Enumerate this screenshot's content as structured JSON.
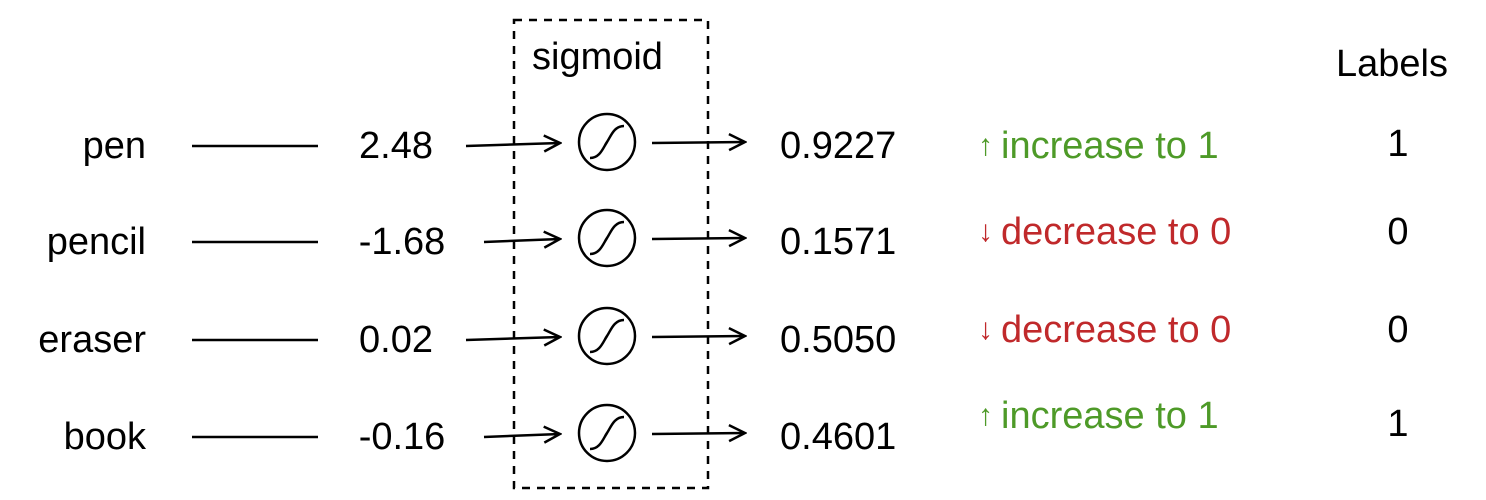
{
  "box_title": "sigmoid",
  "labels_header": "Labels",
  "rows": [
    {
      "word": "pen",
      "logit": "2.48",
      "prob": "0.9227",
      "arrow": "↑",
      "direction": "increase to 1",
      "label": "1"
    },
    {
      "word": "pencil",
      "logit": "-1.68",
      "prob": "0.1571",
      "arrow": "↓",
      "direction": "decrease to 0",
      "label": "0"
    },
    {
      "word": "eraser",
      "logit": "0.02",
      "prob": "0.5050",
      "arrow": "↓",
      "direction": "decrease to 0",
      "label": "0"
    },
    {
      "word": "book",
      "logit": "-0.16",
      "prob": "0.4601",
      "arrow": "↑",
      "direction": "increase to 1",
      "label": "1"
    }
  ],
  "colors": {
    "increase": "#4e9a28",
    "decrease": "#c0292b",
    "ink": "#000000"
  },
  "icons": {
    "sigmoid": "sigmoid-curve-icon",
    "arrow": "right-arrow-icon"
  }
}
